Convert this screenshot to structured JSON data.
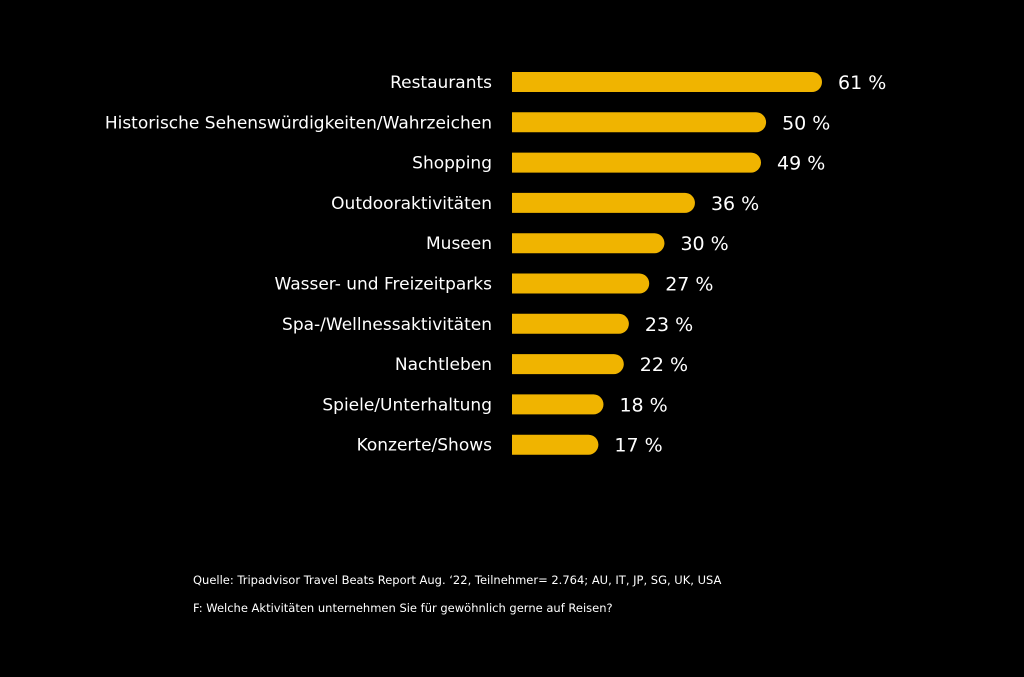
{
  "chart_data": {
    "type": "bar",
    "orientation": "horizontal",
    "categories": [
      "Restaurants",
      "Historische Sehenswürdigkeiten/Wahrzeichen",
      "Shopping",
      "Outdooraktivitäten",
      "Museen",
      "Wasser- und Freizeitparks",
      "Spa-/Wellnessaktivitäten",
      "Nachtleben",
      "Spiele/Unterhaltung",
      "Konzerte/Shows"
    ],
    "values": [
      61,
      50,
      49,
      36,
      30,
      27,
      23,
      22,
      18,
      17
    ],
    "value_labels": [
      "61 %",
      "50 %",
      "49 %",
      "36 %",
      "30 %",
      "27 %",
      "23 %",
      "22 %",
      "18 %",
      "17 %"
    ],
    "title": "",
    "xlabel": "",
    "ylabel": "",
    "xlim": [
      0,
      61
    ],
    "grid": false,
    "legend": "none",
    "colors": {
      "background": "#000000",
      "bar": "#F0B400",
      "text": "#ffffff"
    }
  },
  "footnotes": {
    "source": "Quelle: Tripadvisor Travel Beats Report Aug. ‘22, Teilnehmer= 2.764; AU, IT, JP, SG, UK, USA",
    "question": "F: Welche Aktivitäten unternehmen Sie für gewöhnlich gerne auf Reisen?"
  }
}
